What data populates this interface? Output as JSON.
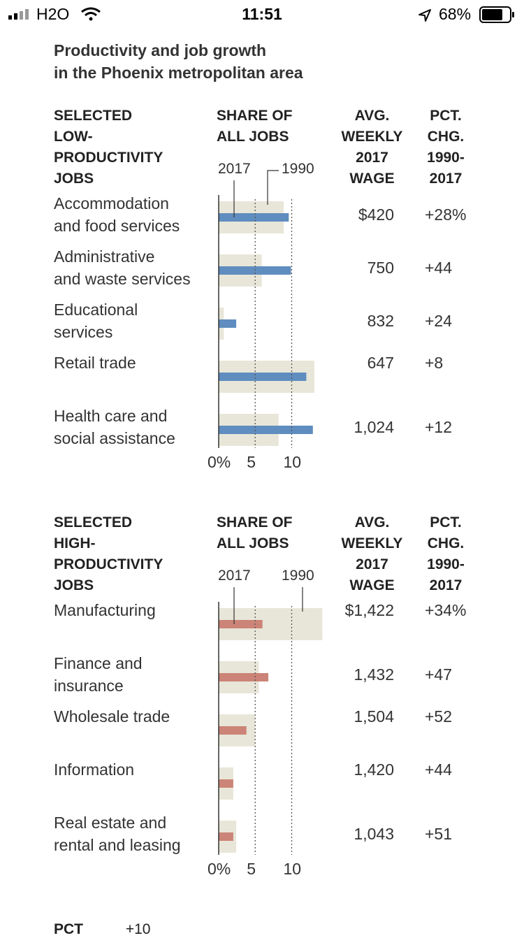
{
  "status_bar": {
    "carrier": "H2O",
    "time": "11:51",
    "battery": "68%",
    "icons": [
      "signal-icon",
      "wifi-icon",
      "location-arrow-icon",
      "battery-icon"
    ]
  },
  "title": "Productivity and job growth\nin the Phoenix metropolitan area",
  "headers": {
    "share": "SHARE OF\nALL JOBS",
    "wage": "AVG.\nWEEKLY\n2017\nWAGE",
    "pct": "PCT.\nCHG.\n1990-\n2017",
    "year_2017": "2017",
    "year_1990": "1990"
  },
  "axis_ticks": [
    "0%",
    "5",
    "10"
  ],
  "colors": {
    "bar_1990": "#e8e6d8",
    "low_2017": "#5f8dbf",
    "high_2017": "#cb8477"
  },
  "chart_data": [
    {
      "type": "bar",
      "group_label": "SELECTED\nLOW-\nPRODUCTIVITY\nJOBS",
      "categories": [
        "Accommodation\nand food services",
        "Administrative\nand waste services",
        "Educational\nservices",
        "Retail trade",
        "Health care and\nsocial assistance"
      ],
      "series": [
        {
          "name": "2017",
          "values": [
            9.6,
            9.9,
            2.4,
            12.0,
            12.9
          ]
        },
        {
          "name": "1990",
          "values": [
            8.9,
            5.9,
            0.7,
            13.1,
            8.2
          ]
        }
      ],
      "weekly_wage": [
        "$420",
        "750",
        "832",
        "647",
        "1,024"
      ],
      "pct_change": [
        "+28%",
        "+44",
        "+24",
        "+8",
        "+12"
      ],
      "xlim": [
        0,
        14
      ]
    },
    {
      "type": "bar",
      "group_label": "SELECTED\nHIGH-\nPRODUCTIVITY\nJOBS",
      "categories": [
        "Manufacturing",
        "Finance and\ninsurance",
        "Wholesale trade",
        "Information",
        "Real estate and\nrental and leasing"
      ],
      "series": [
        {
          "name": "2017",
          "values": [
            6.0,
            6.8,
            3.8,
            2.0,
            2.0
          ]
        },
        {
          "name": "1990",
          "values": [
            14.2,
            5.5,
            5.0,
            2.0,
            2.4
          ]
        }
      ],
      "weekly_wage": [
        "$1,422",
        "1,432",
        "1,504",
        "1,420",
        "1,043"
      ],
      "pct_change": [
        "+34%",
        "+47",
        "+52",
        "+44",
        "+51"
      ],
      "xlim": [
        0,
        14
      ]
    }
  ],
  "footer_partial": {
    "label": "PCT",
    "value": "+10"
  }
}
